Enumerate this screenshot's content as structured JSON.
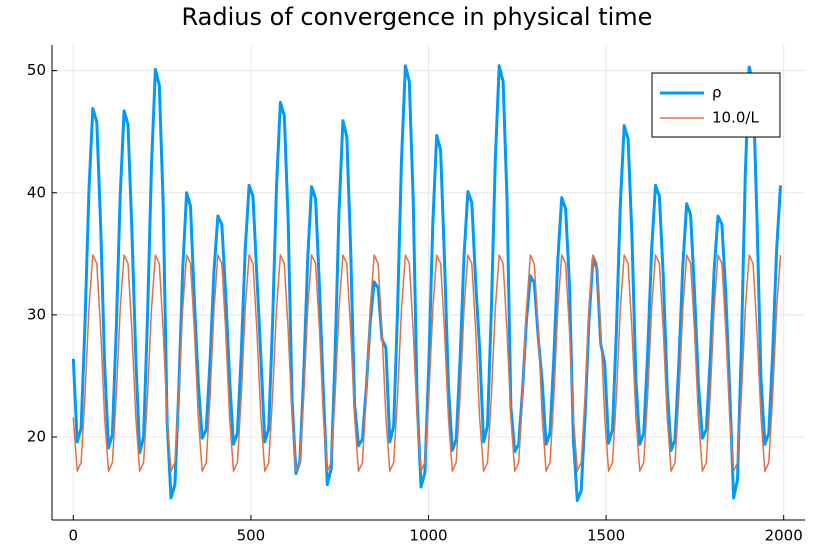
{
  "chart_data": {
    "type": "line",
    "title": "Radius of convergence in physical time",
    "x": [
      0,
      11,
      22,
      33,
      44,
      55,
      66,
      77,
      88,
      99,
      110,
      121,
      132,
      143,
      154,
      165,
      176,
      187,
      198,
      209,
      220,
      231,
      242,
      253,
      264,
      275,
      286,
      297,
      308,
      319,
      330,
      341,
      352,
      363,
      374,
      385,
      396,
      407,
      418,
      429,
      440,
      451,
      462,
      473,
      484,
      495,
      506,
      517,
      528,
      539,
      550,
      561,
      572,
      583,
      594,
      605,
      616,
      627,
      638,
      649,
      660,
      671,
      682,
      693,
      704,
      715,
      726,
      737,
      748,
      759,
      770,
      781,
      792,
      803,
      814,
      825,
      836,
      847,
      858,
      869,
      880,
      891,
      902,
      913,
      924,
      935,
      946,
      957,
      968,
      979,
      990,
      1001,
      1012,
      1023,
      1034,
      1045,
      1056,
      1067,
      1078,
      1089,
      1100,
      1111,
      1122,
      1133,
      1144,
      1155,
      1166,
      1177,
      1188,
      1199,
      1210,
      1221,
      1232,
      1243,
      1254,
      1265,
      1276,
      1287,
      1298,
      1309,
      1320,
      1331,
      1342,
      1353,
      1364,
      1375,
      1386,
      1397,
      1408,
      1419,
      1430,
      1441,
      1452,
      1463,
      1474,
      1485,
      1496,
      1507,
      1518,
      1529,
      1540,
      1551,
      1562,
      1573,
      1584,
      1595,
      1606,
      1617,
      1628,
      1639,
      1650,
      1661,
      1672,
      1683,
      1694,
      1705,
      1716,
      1727,
      1738,
      1749,
      1760,
      1771,
      1782,
      1793,
      1804,
      1815,
      1826,
      1837,
      1848,
      1859,
      1870,
      1881,
      1892,
      1903,
      1914,
      1925,
      1936,
      1947,
      1958,
      1969,
      1980,
      1991
    ],
    "series": [
      {
        "name": "ρ",
        "color": "#009af9",
        "values": [
          26.4,
          19.6,
          20.7,
          29.3,
          40.1,
          46.9,
          45.8,
          37.2,
          26.0,
          19.1,
          20.2,
          28.9,
          39.8,
          46.7,
          45.6,
          36.9,
          26.5,
          18.7,
          20.0,
          29.8,
          42.3,
          50.1,
          48.8,
          39.0,
          21.3,
          15.0,
          16.1,
          23.9,
          33.7,
          40.0,
          38.9,
          31.1,
          24.4,
          19.9,
          20.6,
          26.3,
          33.6,
          38.1,
          37.4,
          31.7,
          24.7,
          19.4,
          20.3,
          26.9,
          35.3,
          40.6,
          39.7,
          33.1,
          26.5,
          19.6,
          20.7,
          29.4,
          40.5,
          47.4,
          46.3,
          37.6,
          22.9,
          17.0,
          18.0,
          25.3,
          34.6,
          40.5,
          39.5,
          32.2,
          23.6,
          16.1,
          17.4,
          26.7,
          38.4,
          45.9,
          44.6,
          35.3,
          22.6,
          19.3,
          19.8,
          24.0,
          29.4,
          32.7,
          32.2,
          28.0,
          27.3,
          19.6,
          20.9,
          30.5,
          42.7,
          50.4,
          49.1,
          39.5,
          23.1,
          15.9,
          17.1,
          26.1,
          37.5,
          44.7,
          43.5,
          34.5,
          24.2,
          18.9,
          19.8,
          26.4,
          34.8,
          40.1,
          39.2,
          32.6,
          27.3,
          19.6,
          20.9,
          30.5,
          42.7,
          50.4,
          49.1,
          39.5,
          22.4,
          18.8,
          19.4,
          23.9,
          29.6,
          33.2,
          32.6,
          28.1,
          24.5,
          19.4,
          20.3,
          26.6,
          34.5,
          39.6,
          38.7,
          32.4,
          19.8,
          14.8,
          15.6,
          21.8,
          29.6,
          34.6,
          33.8,
          27.6,
          26.0,
          19.5,
          20.6,
          28.7,
          39.0,
          45.5,
          44.4,
          36.3,
          24.7,
          19.4,
          20.3,
          26.9,
          35.3,
          40.6,
          39.7,
          33.1,
          24.0,
          18.9,
          19.8,
          26.1,
          34.0,
          39.1,
          38.2,
          31.9,
          24.4,
          19.9,
          20.6,
          26.3,
          33.6,
          38.1,
          37.4,
          31.7,
          23.8,
          15.0,
          16.5,
          27.5,
          41.5,
          50.3,
          48.8,
          37.8,
          24.7,
          19.4,
          20.3,
          26.9,
          35.3,
          40.6
        ]
      },
      {
        "name": "10.0/L",
        "color": "#e26f46",
        "values": [
          21.6,
          17.2,
          17.9,
          23.4,
          30.5,
          34.9,
          34.2,
          28.7,
          21.6,
          17.2,
          17.9,
          23.4,
          30.5,
          34.9,
          34.2,
          28.7,
          21.6,
          17.2,
          17.9,
          23.4,
          30.5,
          34.9,
          34.2,
          28.7,
          21.6,
          17.2,
          17.9,
          23.4,
          30.5,
          34.9,
          34.2,
          28.7,
          21.6,
          17.2,
          17.9,
          23.4,
          30.5,
          34.9,
          34.2,
          28.7,
          21.6,
          17.2,
          17.9,
          23.4,
          30.5,
          34.9,
          34.2,
          28.7,
          21.6,
          17.2,
          17.9,
          23.4,
          30.5,
          34.9,
          34.2,
          28.7,
          21.6,
          17.2,
          17.9,
          23.4,
          30.5,
          34.9,
          34.2,
          28.7,
          21.6,
          17.2,
          17.9,
          23.4,
          30.5,
          34.9,
          34.2,
          28.7,
          21.6,
          17.2,
          17.9,
          23.4,
          30.5,
          34.9,
          34.2,
          28.7,
          21.6,
          17.2,
          17.9,
          23.4,
          30.5,
          34.9,
          34.2,
          28.7,
          21.6,
          17.2,
          17.9,
          23.4,
          30.5,
          34.9,
          34.2,
          28.7,
          21.6,
          17.2,
          17.9,
          23.4,
          30.5,
          34.9,
          34.2,
          28.7,
          21.6,
          17.2,
          17.9,
          23.4,
          30.5,
          34.9,
          34.2,
          28.7,
          21.6,
          17.2,
          17.9,
          23.4,
          30.5,
          34.9,
          34.2,
          28.7,
          21.6,
          17.2,
          17.9,
          23.4,
          30.5,
          34.9,
          34.2,
          28.7,
          21.6,
          17.2,
          17.9,
          23.4,
          30.5,
          34.9,
          34.2,
          28.7,
          21.6,
          17.2,
          17.9,
          23.4,
          30.5,
          34.9,
          34.2,
          28.7,
          21.6,
          17.2,
          17.9,
          23.4,
          30.5,
          34.9,
          34.2,
          28.7,
          21.6,
          17.2,
          17.9,
          23.4,
          30.5,
          34.9,
          34.2,
          28.7,
          21.6,
          17.2,
          17.9,
          23.4,
          30.5,
          34.9,
          34.2,
          28.7,
          21.6,
          17.2,
          17.9,
          23.4,
          30.5,
          34.9,
          34.2,
          28.7,
          21.6,
          17.2,
          17.9,
          23.4,
          30.5,
          34.9
        ]
      }
    ],
    "xlim": [
      -60,
      2060
    ],
    "xticks": [
      0,
      500,
      1000,
      1500,
      2000
    ],
    "ylim": [
      13.2,
      52.1
    ],
    "yticks": [
      20,
      30,
      40,
      50
    ],
    "grid": true,
    "legend": "top-right"
  }
}
